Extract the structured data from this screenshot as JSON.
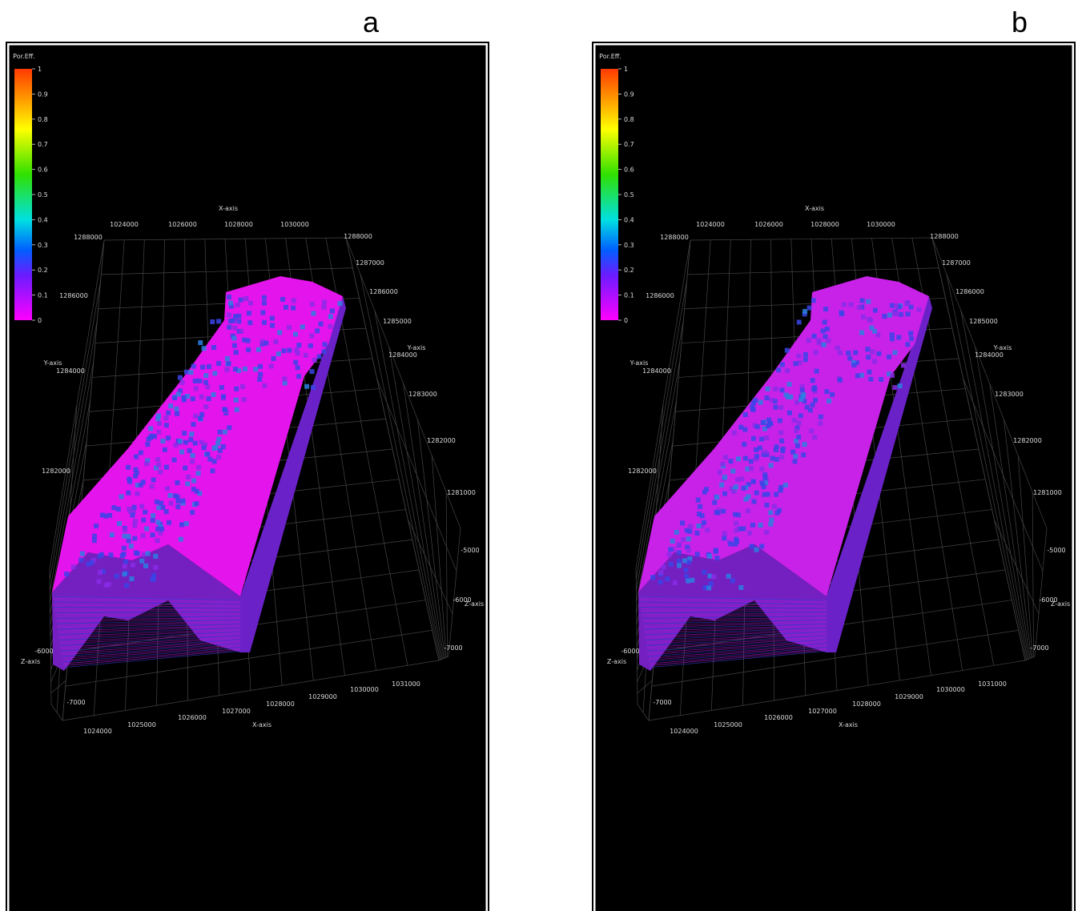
{
  "panels": [
    {
      "label": "a",
      "colorbar": {
        "title": "Por.Eff.",
        "ticks": [
          1,
          0.9,
          0.8,
          0.7,
          0.6,
          0.5,
          0.4,
          0.3,
          0.2,
          0.1,
          0
        ]
      },
      "axes": {
        "x_title_top": "X-axis",
        "x_ticks_top": [
          1024000,
          1026000,
          1028000,
          1030000
        ],
        "y_title_left": "Y-axis",
        "y_ticks_left": [
          1288000,
          1286000,
          1284000,
          1282000
        ],
        "y_title_right": "Y-axis",
        "y_ticks_right": [
          1288000,
          1287000,
          1286000,
          1285000,
          1284000,
          1283000,
          1282000,
          1281000
        ],
        "z_title_right": "Z-axis",
        "z_ticks_right": [
          -5000,
          -6000,
          -7000
        ],
        "z_title_left": "Z-axis",
        "z_ticks_left": [
          -6000,
          -7000
        ],
        "x_title_bottom": "X-axis",
        "x_ticks_bottom": [
          1024000,
          1025000,
          1026000,
          1027000,
          1028000,
          1029000,
          1030000,
          1031000
        ]
      }
    },
    {
      "label": "b",
      "colorbar": {
        "title": "Por.Eff.",
        "ticks": [
          1,
          0.9,
          0.8,
          0.7,
          0.6,
          0.5,
          0.4,
          0.3,
          0.2,
          0.1,
          0
        ]
      },
      "axes": {
        "x_title_top": "X-axis",
        "x_ticks_top": [
          1024000,
          1026000,
          1028000,
          1030000
        ],
        "y_title_left": "Y-axis",
        "y_ticks_left": [
          1288000,
          1286000,
          1284000,
          1282000
        ],
        "y_title_right": "Y-axis",
        "y_ticks_right": [
          1288000,
          1287000,
          1286000,
          1285000,
          1284000,
          1283000,
          1282000,
          1281000
        ],
        "z_title_right": "Z-axis",
        "z_ticks_right": [
          -5000,
          -6000,
          -7000
        ],
        "z_title_left": "Z-axis",
        "z_ticks_left": [
          -6000,
          -7000
        ],
        "x_title_bottom": "X-axis",
        "x_ticks_bottom": [
          1024000,
          1025000,
          1026000,
          1027000,
          1028000,
          1029000,
          1030000,
          1031000
        ]
      }
    }
  ]
}
